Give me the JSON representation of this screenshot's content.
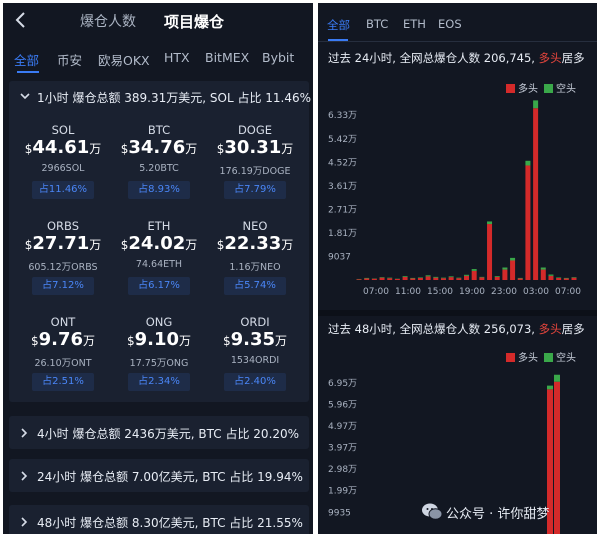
{
  "left": {
    "header": {
      "tab_1": "爆仓人数",
      "tab_2": "项目爆仓"
    },
    "exchanges": [
      "全部",
      "币安",
      "欧易OKX",
      "HTX",
      "BitMEX",
      "Bybit"
    ],
    "section_1h": {
      "title": "1小时 爆仓总额 389.31万美元, SOL 占比 11.46%",
      "coins": [
        {
          "name": "SOL",
          "currency": "$",
          "value": "44.61",
          "unit": "万",
          "amount": "2966SOL",
          "share": "占11.46%"
        },
        {
          "name": "BTC",
          "currency": "$",
          "value": "34.76",
          "unit": "万",
          "amount": "5.20BTC",
          "share": "占8.93%"
        },
        {
          "name": "DOGE",
          "currency": "$",
          "value": "30.31",
          "unit": "万",
          "amount": "176.19万DOGE",
          "share": "占7.79%"
        },
        {
          "name": "ORBS",
          "currency": "$",
          "value": "27.71",
          "unit": "万",
          "amount": "605.12万ORBS",
          "share": "占7.12%"
        },
        {
          "name": "ETH",
          "currency": "$",
          "value": "24.02",
          "unit": "万",
          "amount": "74.64ETH",
          "share": "占6.17%"
        },
        {
          "name": "NEO",
          "currency": "$",
          "value": "22.33",
          "unit": "万",
          "amount": "1.16万NEO",
          "share": "占5.74%"
        },
        {
          "name": "ONT",
          "currency": "$",
          "value": "9.76",
          "unit": "万",
          "amount": "26.10万ONT",
          "share": "占2.51%"
        },
        {
          "name": "ONG",
          "currency": "$",
          "value": "9.10",
          "unit": "万",
          "amount": "17.75万ONG",
          "share": "占2.34%"
        },
        {
          "name": "ORDI",
          "currency": "$",
          "value": "9.35",
          "unit": "万",
          "amount": "1534ORDI",
          "share": "占2.40%"
        }
      ]
    },
    "collapsed_sections": [
      {
        "title": "4小时 爆仓总额 2436万美元, BTC 占比 20.20%"
      },
      {
        "title": "24小时 爆仓总额 7.00亿美元, BTC 占比 19.94%"
      },
      {
        "title": "48小时 爆仓总额 8.30亿美元, BTC 占比 21.55%"
      }
    ]
  },
  "right": {
    "tabs": [
      "全部",
      "BTC",
      "ETH",
      "EOS"
    ],
    "chart_24h_title": {
      "prefix": "过去 24小时, 全网总爆仓人数 206,745, ",
      "highlight": "多头",
      "suffix": "居多"
    },
    "chart_48h_title": {
      "prefix": "过去 48小时, 全网总爆仓人数 256,073, ",
      "highlight": "多头",
      "suffix": "居多"
    },
    "legend": {
      "long": "多头",
      "short": "空头"
    }
  },
  "colors": {
    "long": "#d42a2a",
    "short": "#3aa84a",
    "accent": "#3a7bf4",
    "background": "#121722"
  },
  "watermark": {
    "text": "公众号 · 许你甜梦",
    "icon": "wechat-icon"
  },
  "chart_data": [
    {
      "type": "bar",
      "title": "过去 24小时, 全网总爆仓人数 206,745, 多头居多",
      "stacked": true,
      "y_tick_labels": [
        "9037",
        "1.81万",
        "2.71万",
        "3.61万",
        "4.52万",
        "5.42万",
        "6.33万"
      ],
      "y_ticks": [
        9037,
        18100,
        27100,
        36100,
        45200,
        54200,
        63300
      ],
      "ylim": [
        0,
        68000
      ],
      "x_tick_labels": [
        "07:00",
        "11:00",
        "15:00",
        "19:00",
        "23:00",
        "03:00",
        "07:00"
      ],
      "legend": [
        "多头",
        "空头"
      ],
      "legend_position": "top-right",
      "series": [
        {
          "name": "多头",
          "values": [
            300,
            600,
            500,
            900,
            700,
            400,
            1200,
            600,
            800,
            1400,
            900,
            700,
            1100,
            700,
            1600,
            3500,
            1000,
            21500,
            1200,
            4000,
            7500,
            600,
            44000,
            66000,
            4000,
            1600,
            800,
            600,
            900
          ]
        },
        {
          "name": "空头",
          "values": [
            100,
            200,
            100,
            200,
            200,
            100,
            300,
            200,
            200,
            400,
            300,
            200,
            300,
            200,
            400,
            700,
            200,
            1000,
            300,
            800,
            1000,
            200,
            1800,
            3000,
            800,
            500,
            200,
            200,
            200
          ]
        }
      ]
    },
    {
      "type": "bar",
      "title": "过去 48小时, 全网总爆仓人数 256,073, 多头居多",
      "stacked": true,
      "y_tick_labels": [
        "9935",
        "1.99万",
        "2.98万",
        "3.97万",
        "4.97万",
        "5.96万",
        "6.95万"
      ],
      "y_ticks": [
        9935,
        19900,
        29800,
        39700,
        49700,
        59600,
        69500
      ],
      "ylim": [
        0,
        74000
      ],
      "legend": [
        "多头",
        "空头"
      ],
      "legend_position": "top-right",
      "series": [
        {
          "name": "多头",
          "values": [
            66500,
            70000
          ]
        },
        {
          "name": "空头",
          "values": [
            1700,
            3200
          ]
        }
      ]
    }
  ]
}
